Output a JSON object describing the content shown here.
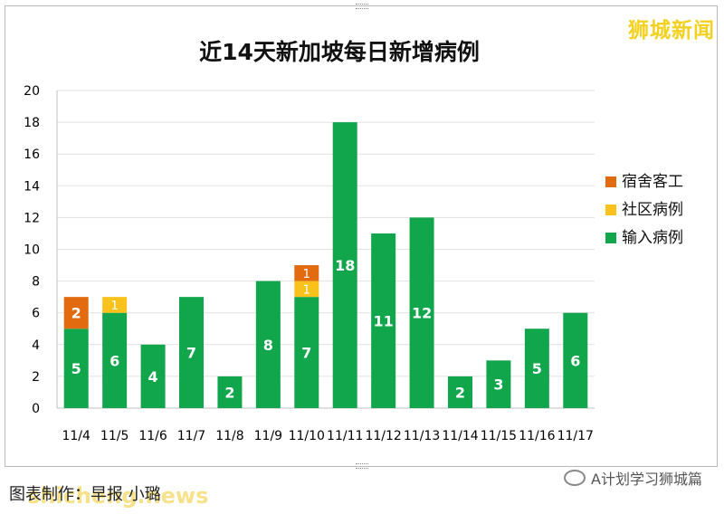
{
  "brand": "狮城新闻",
  "source_text": "图表制作：早报 小璐",
  "watermark_left": "shicheng.news",
  "watermark_right": "A计划学习狮城篇",
  "colors": {
    "dorm": "#e26b10",
    "community": "#f8c11b",
    "imported": "#11a64c",
    "grid": "#e1e1e1"
  },
  "chart_data": {
    "type": "bar",
    "stacked": true,
    "title": "近14天新加坡每日新增病例",
    "xlabel": "",
    "ylabel": "",
    "ylim": [
      0,
      20
    ],
    "yticks": [
      0,
      2,
      4,
      6,
      8,
      10,
      12,
      14,
      16,
      18,
      20
    ],
    "grid": true,
    "legend_position": "right",
    "categories": [
      "11/4",
      "11/5",
      "11/6",
      "11/7",
      "11/8",
      "11/9",
      "11/10",
      "11/11",
      "11/12",
      "11/13",
      "11/14",
      "11/15",
      "11/16",
      "11/17"
    ],
    "series": [
      {
        "name": "输入病例",
        "color_key": "imported",
        "values": [
          5,
          6,
          4,
          7,
          2,
          8,
          7,
          18,
          11,
          12,
          2,
          3,
          5,
          6
        ]
      },
      {
        "name": "社区病例",
        "color_key": "community",
        "values": [
          0,
          1,
          0,
          0,
          0,
          0,
          1,
          0,
          0,
          0,
          0,
          0,
          0,
          0
        ]
      },
      {
        "name": "宿舍客工",
        "color_key": "dorm",
        "values": [
          2,
          0,
          0,
          0,
          0,
          0,
          1,
          0,
          0,
          0,
          0,
          0,
          0,
          0
        ]
      }
    ],
    "legend": [
      "宿舍客工",
      "社区病例",
      "输入病例"
    ]
  }
}
